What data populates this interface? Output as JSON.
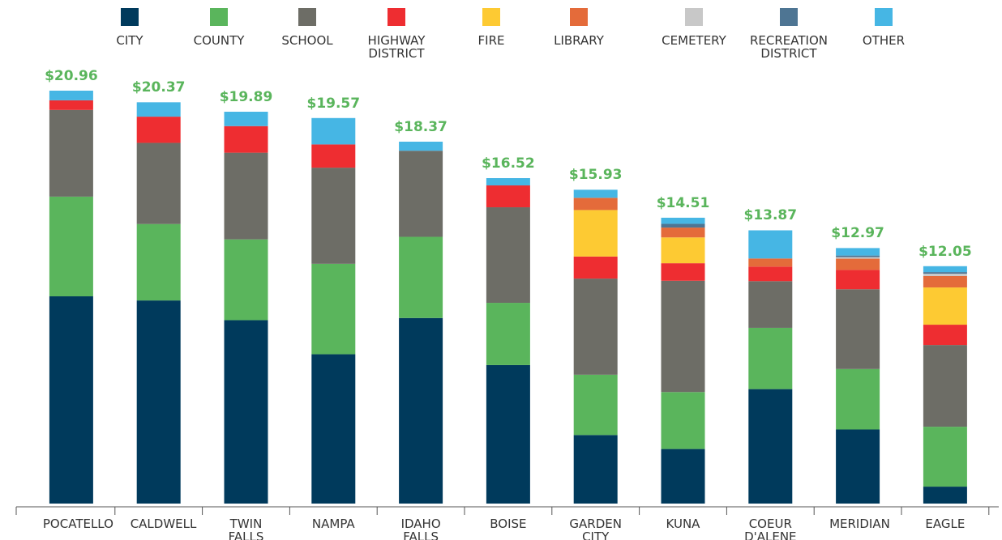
{
  "chart_data": {
    "type": "stacked_bar",
    "categories": [
      "POCATELLO",
      "CALDWELL",
      "TWIN FALLS",
      "NAMPA",
      "IDAHO FALLS",
      "BOISE",
      "GARDEN CITY",
      "KUNA",
      "COEUR D'ALENE",
      "MERIDIAN",
      "EAGLE"
    ],
    "series": [
      {
        "name": "CITY",
        "color": "#003a5c",
        "values": [
          10.52,
          10.31,
          9.31,
          7.58,
          9.42,
          7.03,
          3.48,
          2.77,
          5.81,
          3.76,
          0.86
        ]
      },
      {
        "name": "COUNTY",
        "color": "#5ab55c",
        "values": [
          5.06,
          3.88,
          4.1,
          4.59,
          4.12,
          3.16,
          3.06,
          2.89,
          3.11,
          3.07,
          3.04
        ]
      },
      {
        "name": "SCHOOL",
        "color": "#6d6d66",
        "values": [
          4.4,
          4.12,
          4.4,
          4.88,
          4.37,
          4.85,
          4.88,
          5.65,
          2.37,
          4.05,
          4.15
        ]
      },
      {
        "name": "HIGHWAY DISTRICT",
        "color": "#ee2d31",
        "values": [
          0.49,
          1.33,
          1.35,
          1.18,
          0,
          1.11,
          1.12,
          0.89,
          0.74,
          0.98,
          1.03
        ]
      },
      {
        "name": "FIRE",
        "color": "#fdca33",
        "values": [
          0,
          0,
          0,
          0,
          0,
          0,
          2.36,
          1.31,
          0,
          0,
          1.89
        ]
      },
      {
        "name": "LIBRARY",
        "color": "#e46b3a",
        "values": [
          0,
          0,
          0,
          0,
          0,
          0,
          0.62,
          0.5,
          0.41,
          0.57,
          0.58
        ]
      },
      {
        "name": "CEMETERY",
        "color": "#c8c8c8",
        "values": [
          0,
          0,
          0,
          0,
          0,
          0,
          0,
          0,
          0,
          0.08,
          0.12
        ]
      },
      {
        "name": "RECREATION DISTRICT",
        "color": "#4e7593",
        "values": [
          0,
          0,
          0,
          0,
          0,
          0,
          0,
          0.19,
          0,
          0.08,
          0.08
        ]
      },
      {
        "name": "OTHER",
        "color": "#46b6e4",
        "values": [
          0.49,
          0.73,
          0.73,
          1.34,
          0.46,
          0.37,
          0.41,
          0.31,
          1.43,
          0.38,
          0.3
        ]
      }
    ],
    "totals": [
      20.96,
      20.37,
      19.89,
      19.57,
      18.37,
      16.52,
      15.93,
      14.51,
      13.87,
      12.97,
      12.05
    ],
    "total_labels": [
      "$20.96",
      "$20.37",
      "$19.89",
      "$19.57",
      "$18.37",
      "$16.52",
      "$15.93",
      "$14.51",
      "$13.87",
      "$12.97",
      "$12.05"
    ],
    "total_color": "#5ab55c",
    "ylim": [
      0,
      21
    ]
  }
}
